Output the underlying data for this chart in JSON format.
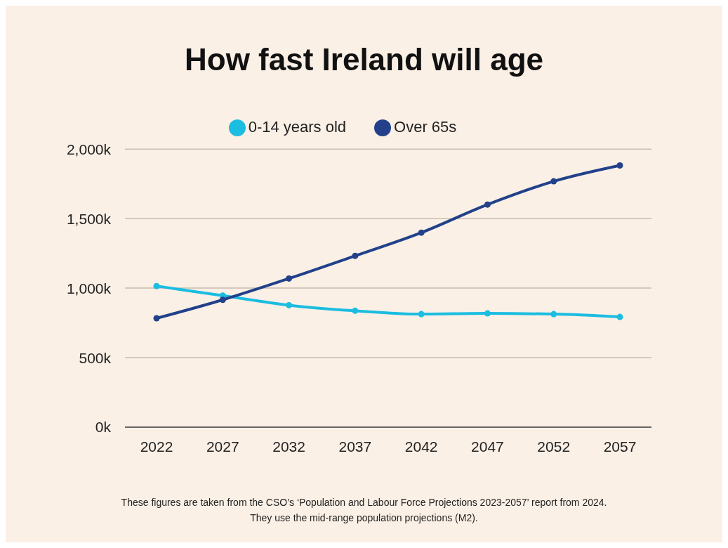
{
  "chart_data": {
    "type": "line",
    "title": "How fast Ireland will age",
    "categories": [
      "2022",
      "2027",
      "2032",
      "2037",
      "2042",
      "2047",
      "2052",
      "2057"
    ],
    "series": [
      {
        "name": "0-14 years old",
        "color": "#1bbde0",
        "values": [
          1015,
          946,
          877,
          837,
          813,
          818,
          813,
          793
        ]
      },
      {
        "name": "Over 65s",
        "color": "#22418a",
        "values": [
          783,
          916,
          1069,
          1232,
          1399,
          1601,
          1768,
          1882
        ]
      }
    ],
    "ylim": [
      0,
      2000
    ],
    "yticks": [
      {
        "value": 0,
        "label": "0k"
      },
      {
        "value": 500,
        "label": "500k"
      },
      {
        "value": 1000,
        "label": "1,000k"
      },
      {
        "value": 1500,
        "label": "1,500k"
      },
      {
        "value": 2000,
        "label": "2,000k"
      }
    ],
    "grid": "y",
    "legend": "top",
    "marker": "circle",
    "line_style": "solid",
    "annotations": [
      "These figures are taken from the CSO’s ‘Population and Labour Force Projections 2023-2057’ report from 2024.",
      "They use the mid-range population projections (M2)."
    ]
  }
}
